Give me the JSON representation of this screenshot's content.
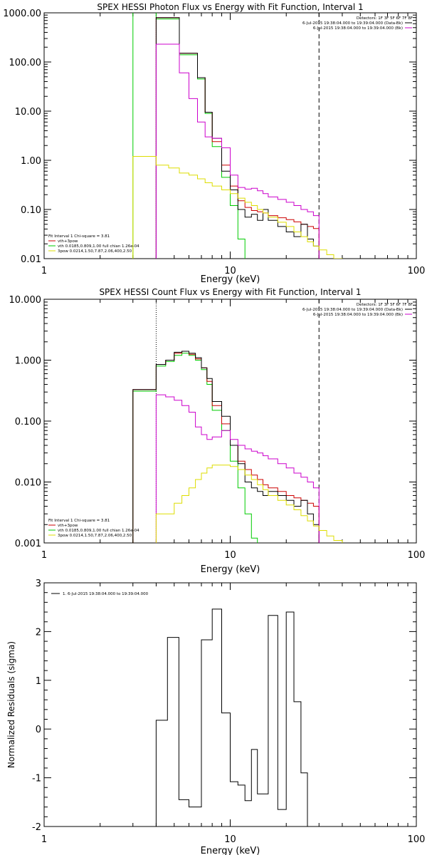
{
  "chart_data": [
    {
      "type": "line",
      "title": "SPEX HESSI Photon Flux vs Energy with Fit Function, Interval 1",
      "xlabel": "Energy (keV)",
      "ylabel": "",
      "xscale": "log",
      "yscale": "log",
      "xlim": [
        1,
        100
      ],
      "ylim": [
        0.01,
        1000
      ],
      "xticks": [
        {
          "value": 1,
          "label": "1"
        },
        {
          "value": 10,
          "label": "10"
        },
        {
          "value": 100,
          "label": "100"
        }
      ],
      "yticks": [
        {
          "value": 0.01,
          "label": "0.01"
        },
        {
          "value": 0.1,
          "label": "0.10"
        },
        {
          "value": 1,
          "label": "1.00"
        },
        {
          "value": 10,
          "label": "10.00"
        },
        {
          "value": 100,
          "label": "100.00"
        },
        {
          "value": 1000,
          "label": "1000.00"
        }
      ],
      "header_lines": [
        {
          "text": "Detectors: 1F 3F 5F 6F 7F 8F",
          "color": ""
        },
        {
          "text": "6-Jul-2015 19:38:04.000 to 19:39:04.000 (Data-Bk)",
          "color": "#000000"
        },
        {
          "text": "6-Jul-2015 19:38:04.000 to 19:39:04.000 (Bk)",
          "color": "#cc00cc"
        }
      ],
      "fit_legend": [
        {
          "text": "Fit Interval 1   Chi-square = 3.81",
          "color": ""
        },
        {
          "text": "vth+3pow",
          "color": "#cc0000"
        },
        {
          "text": "vth 0.0185,0.809,1.00  full chian 1.26e-04",
          "color": "#00cc00"
        },
        {
          "text": "3pow 0.0214,1.50,7.87,2.06,400,2.50",
          "color": "#dddd00"
        }
      ],
      "vlines": [
        {
          "x": 4.0,
          "style": "dotted",
          "color": "#000000"
        },
        {
          "x": 30.0,
          "style": "dashed",
          "color": "#000000"
        }
      ],
      "edges": [
        3.0,
        4.0,
        4.67,
        5.33,
        6.0,
        6.67,
        7.33,
        8.0,
        9.0,
        10.0,
        11.0,
        12.0,
        13.0,
        14.0,
        15.0,
        16.0,
        18.0,
        20.0,
        22.0,
        24.0,
        26.0,
        28.0,
        30.0,
        33.0,
        36.0,
        40.0,
        44.0,
        50.0
      ],
      "series": [
        {
          "color": "#00cc00",
          "y_min": 0.01,
          "values": [
            1000000,
            750,
            750,
            140,
            140,
            45,
            9,
            1.9,
            0.45,
            0.12,
            0.025,
            0.008,
            null,
            null,
            null,
            null,
            null,
            null,
            null,
            null,
            null,
            null,
            null,
            null,
            null,
            null,
            null
          ]
        },
        {
          "color": "#cc0000",
          "y_min": 0.01,
          "values": [
            null,
            800,
            800,
            150,
            150,
            48,
            9.5,
            2.4,
            0.8,
            0.3,
            0.15,
            0.11,
            0.095,
            0.09,
            0.085,
            0.075,
            0.068,
            0.062,
            0.056,
            0.05,
            0.045,
            0.041,
            null,
            null,
            null,
            null,
            null
          ]
        },
        {
          "color": "#000000",
          "y_min": 0.01,
          "values": [
            null,
            800,
            800,
            150,
            150,
            48,
            9.5,
            2.8,
            0.6,
            0.25,
            0.1,
            0.07,
            0.08,
            0.06,
            0.1,
            0.06,
            0.045,
            0.035,
            0.028,
            0.05,
            0.025,
            0.018,
            null,
            null,
            null,
            null,
            null
          ]
        },
        {
          "color": "#cc00cc",
          "y_min": 0.01,
          "values": [
            null,
            230,
            230,
            60,
            18,
            6,
            3,
            2.8,
            1.8,
            0.5,
            0.28,
            0.26,
            0.27,
            0.24,
            0.21,
            0.18,
            0.16,
            0.14,
            0.12,
            0.1,
            0.09,
            0.075,
            null,
            null,
            null,
            null,
            null
          ]
        },
        {
          "color": "#dddd00",
          "y_min": 0.01,
          "values": [
            1.2,
            0.8,
            0.7,
            0.55,
            0.5,
            0.42,
            0.35,
            0.3,
            0.25,
            0.21,
            0.17,
            0.14,
            0.12,
            0.1,
            0.085,
            0.07,
            0.055,
            0.045,
            0.035,
            0.028,
            0.022,
            0.018,
            0.015,
            0.012,
            0.01,
            0.008,
            0.006
          ]
        }
      ]
    },
    {
      "type": "line",
      "title": "SPEX HESSI Count Flux vs Energy with Fit Function, Interval 1",
      "xlabel": "Energy (keV)",
      "ylabel": "",
      "xscale": "log",
      "yscale": "log",
      "xlim": [
        1,
        100
      ],
      "ylim": [
        0.001,
        10
      ],
      "xticks": [
        {
          "value": 1,
          "label": "1"
        },
        {
          "value": 10,
          "label": "10"
        },
        {
          "value": 100,
          "label": "100"
        }
      ],
      "yticks": [
        {
          "value": 0.001,
          "label": "0.001"
        },
        {
          "value": 0.01,
          "label": "0.010"
        },
        {
          "value": 0.1,
          "label": "0.100"
        },
        {
          "value": 1,
          "label": "1.000"
        },
        {
          "value": 10,
          "label": "10.000"
        }
      ],
      "header_lines": [
        {
          "text": "Detectors: 1F 3F 5F 6F 7F 8F",
          "color": ""
        },
        {
          "text": "6-Jul-2015 19:38:04.000 to 19:39:04.000 (Data-Bk)",
          "color": "#000000"
        },
        {
          "text": "6-Jul-2015 19:38:04.000 to 19:39:04.000 (Bk)",
          "color": "#cc00cc"
        }
      ],
      "fit_legend": [
        {
          "text": "Fit Interval 1   Chi-square = 3.81",
          "color": ""
        },
        {
          "text": "vth+3pow",
          "color": "#cc0000"
        },
        {
          "text": "vth 0.0185,0.809,1.00  full chian 1.26e-04",
          "color": "#00cc00"
        },
        {
          "text": "3pow 0.0214,1.50,7.87,2.06,400,2.50",
          "color": "#dddd00"
        }
      ],
      "vlines": [
        {
          "x": 4.0,
          "style": "dotted",
          "color": "#000000"
        },
        {
          "x": 30.0,
          "style": "dashed",
          "color": "#000000"
        }
      ],
      "edges": [
        3.0,
        4.0,
        4.5,
        5.0,
        5.5,
        6.0,
        6.5,
        7.0,
        7.5,
        8.0,
        9.0,
        10.0,
        11.0,
        12.0,
        13.0,
        14.0,
        15.0,
        16.0,
        18.0,
        20.0,
        22.0,
        24.0,
        26.0,
        28.0,
        30.0,
        33.0,
        36.0,
        40.0,
        44.0,
        48.0,
        52.0
      ],
      "series": [
        {
          "color": "#00cc00",
          "y_min": 0.001,
          "values": [
            0.31,
            0.8,
            0.95,
            1.2,
            1.3,
            1.2,
            1.0,
            0.7,
            0.4,
            0.15,
            0.07,
            0.022,
            0.008,
            0.003,
            0.0012,
            0.0005,
            null,
            null,
            null,
            null,
            null,
            null,
            null,
            null,
            null,
            null,
            null,
            null,
            null,
            null
          ]
        },
        {
          "color": "#cc0000",
          "y_min": 0.001,
          "values": [
            0.33,
            0.85,
            1.0,
            1.3,
            1.4,
            1.25,
            1.05,
            0.75,
            0.45,
            0.18,
            0.09,
            0.04,
            0.022,
            0.016,
            0.013,
            0.011,
            0.009,
            0.008,
            0.007,
            0.006,
            0.0055,
            0.005,
            0.0045,
            0.004,
            null,
            null,
            null,
            null,
            null,
            null
          ]
        },
        {
          "color": "#000000",
          "y_min": 0.001,
          "values": [
            0.33,
            0.85,
            1.0,
            1.35,
            1.4,
            1.3,
            1.1,
            0.75,
            0.5,
            0.21,
            0.12,
            0.04,
            0.02,
            0.01,
            0.008,
            0.007,
            0.006,
            0.007,
            0.006,
            0.005,
            0.004,
            0.005,
            0.003,
            0.002,
            null,
            null,
            null,
            null,
            null,
            null
          ]
        },
        {
          "color": "#cc00cc",
          "y_min": 0.001,
          "values": [
            null,
            0.27,
            0.25,
            0.22,
            0.18,
            0.14,
            0.08,
            0.06,
            0.05,
            0.055,
            0.07,
            0.05,
            0.04,
            0.035,
            0.032,
            0.03,
            0.027,
            0.024,
            0.02,
            0.017,
            0.014,
            0.012,
            0.01,
            0.008,
            null,
            null,
            null,
            null,
            null,
            null
          ]
        },
        {
          "color": "#dddd00",
          "y_min": 0.001,
          "values": [
            null,
            0.003,
            0.003,
            0.0045,
            0.006,
            0.008,
            0.011,
            0.014,
            0.017,
            0.019,
            0.019,
            0.018,
            0.016,
            0.013,
            0.011,
            0.009,
            0.0075,
            0.006,
            0.005,
            0.0042,
            0.0035,
            0.0028,
            0.0023,
            0.0019,
            0.0016,
            0.0013,
            0.0011,
            0.0009,
            0.0008,
            0.0007
          ]
        }
      ]
    },
    {
      "type": "line",
      "title": "",
      "xlabel": "Energy (keV)",
      "ylabel": "Normalized Residuals (sigma)",
      "xscale": "log",
      "yscale": "linear",
      "xlim": [
        1,
        100
      ],
      "ylim": [
        -2,
        3
      ],
      "xticks": [
        {
          "value": 1,
          "label": "1"
        },
        {
          "value": 10,
          "label": "10"
        },
        {
          "value": 100,
          "label": "100"
        }
      ],
      "yticks": [
        {
          "value": -2,
          "label": "-2"
        },
        {
          "value": -1,
          "label": "-1"
        },
        {
          "value": 0,
          "label": "0"
        },
        {
          "value": 1,
          "label": "1"
        },
        {
          "value": 2,
          "label": "2"
        },
        {
          "value": 3,
          "label": "3"
        }
      ],
      "legend": [
        {
          "text": "1.  6-Jul-2015 19:38:04.000 to 19:39:04.000",
          "color": "#000000"
        }
      ],
      "edges": [
        4.0,
        4.6,
        5.3,
        6.0,
        7.0,
        8.0,
        9.0,
        10.0,
        11.0,
        12.0,
        13.0,
        14.0,
        16.0,
        18.0,
        20.0,
        22.0,
        24.0,
        26.0,
        28.0,
        30.0
      ],
      "series": [
        {
          "color": "#000000",
          "y_min": -2.5,
          "values": [
            0.18,
            1.88,
            -1.45,
            -1.6,
            1.83,
            2.46,
            0.33,
            -1.08,
            -1.15,
            -1.47,
            -0.42,
            -1.33,
            2.33,
            -1.65,
            2.4,
            0.56,
            -0.9,
            null,
            null
          ]
        }
      ]
    }
  ]
}
